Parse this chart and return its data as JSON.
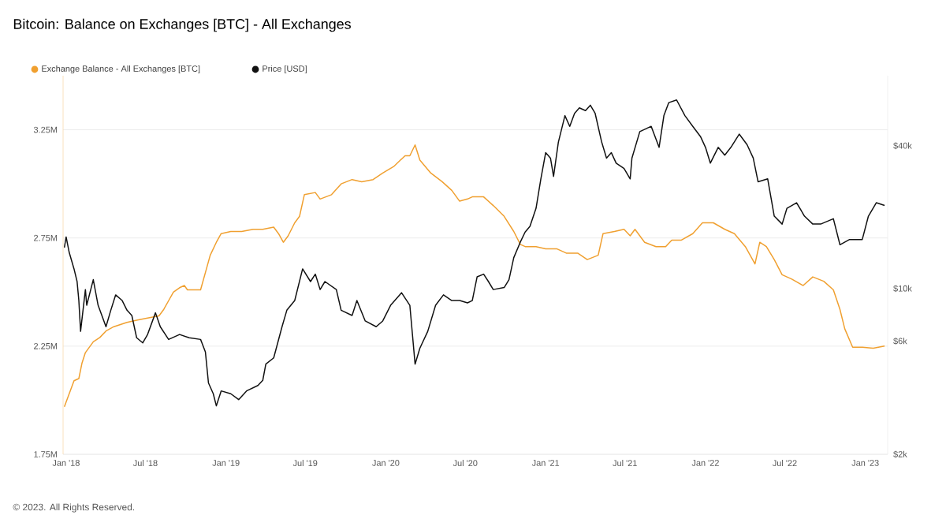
{
  "chart_data": {
    "type": "line",
    "title": "Bitcoin: Balance on Exchanges [BTC] - All Exchanges",
    "annotations": [
      "© 2023. All Rights Reserved."
    ],
    "series": [
      {
        "name": "Exchange Balance - All Exchanges [BTC]",
        "color": "#f0a030",
        "x": [
          "2017-12-28",
          "2018-01-08",
          "2018-01-19",
          "2018-01-30",
          "2018-02-06",
          "2018-02-14",
          "2018-03-04",
          "2018-03-19",
          "2018-04-02",
          "2018-04-20",
          "2018-05-20",
          "2018-06-11",
          "2018-07-06",
          "2018-08-01",
          "2018-08-12",
          "2018-08-23",
          "2018-09-03",
          "2018-09-17",
          "2018-09-28",
          "2018-10-05",
          "2018-11-04",
          "2018-11-15",
          "2018-11-26",
          "2018-12-10",
          "2018-12-21",
          "2019-01-12",
          "2019-02-06",
          "2019-03-04",
          "2019-03-26",
          "2019-04-20",
          "2019-05-01",
          "2019-05-12",
          "2019-05-23",
          "2019-06-07",
          "2019-06-18",
          "2019-06-29",
          "2019-07-24",
          "2019-08-04",
          "2019-08-30",
          "2019-09-21",
          "2019-10-16",
          "2019-11-07",
          "2019-12-03",
          "2019-12-25",
          "2020-01-19",
          "2020-02-14",
          "2020-02-25",
          "2020-03-08",
          "2020-03-19",
          "2020-04-13",
          "2020-05-09",
          "2020-05-31",
          "2020-06-18",
          "2020-07-06",
          "2020-07-17",
          "2020-08-12",
          "2020-09-03",
          "2020-09-28",
          "2020-10-20",
          "2020-11-04",
          "2020-11-15",
          "2020-12-10",
          "2021-01-01",
          "2021-01-26",
          "2021-02-17",
          "2021-03-15",
          "2021-04-06",
          "2021-05-01",
          "2021-05-12",
          "2021-06-07",
          "2021-06-29",
          "2021-07-13",
          "2021-07-24",
          "2021-08-15",
          "2021-09-10",
          "2021-10-02",
          "2021-10-16",
          "2021-11-07",
          "2021-12-03",
          "2021-12-25",
          "2022-01-19",
          "2022-02-14",
          "2022-03-08",
          "2022-04-02",
          "2022-04-24",
          "2022-05-05",
          "2022-05-20",
          "2022-06-07",
          "2022-06-25",
          "2022-07-17",
          "2022-08-12",
          "2022-09-03",
          "2022-09-28",
          "2022-10-20",
          "2022-11-04",
          "2022-11-15",
          "2022-12-03",
          "2022-12-25",
          "2023-01-19",
          "2023-02-14"
        ],
        "values": [
          1.97,
          2.03,
          2.09,
          2.1,
          2.17,
          2.22,
          2.27,
          2.29,
          2.32,
          2.34,
          2.36,
          2.37,
          2.38,
          2.39,
          2.42,
          2.46,
          2.5,
          2.52,
          2.53,
          2.51,
          2.51,
          2.59,
          2.67,
          2.73,
          2.77,
          2.78,
          2.78,
          2.79,
          2.79,
          2.8,
          2.77,
          2.73,
          2.76,
          2.82,
          2.85,
          2.95,
          2.96,
          2.93,
          2.95,
          3.0,
          3.02,
          3.01,
          3.02,
          3.05,
          3.08,
          3.13,
          3.13,
          3.18,
          3.11,
          3.05,
          3.01,
          2.97,
          2.92,
          2.93,
          2.94,
          2.94,
          2.9,
          2.85,
          2.78,
          2.72,
          2.71,
          2.71,
          2.7,
          2.7,
          2.68,
          2.68,
          2.65,
          2.67,
          2.77,
          2.78,
          2.79,
          2.76,
          2.79,
          2.73,
          2.71,
          2.71,
          2.74,
          2.74,
          2.77,
          2.82,
          2.82,
          2.79,
          2.77,
          2.71,
          2.63,
          2.73,
          2.71,
          2.65,
          2.58,
          2.56,
          2.53,
          2.57,
          2.55,
          2.51,
          2.42,
          2.33,
          2.245,
          2.245,
          2.24,
          2.25
        ]
      },
      {
        "name": "Price [USD]",
        "color": "#111111",
        "axis": "y2",
        "x": [
          "2017-12-28",
          "2018-01-01",
          "2018-01-08",
          "2018-01-19",
          "2018-01-26",
          "2018-01-30",
          "2018-02-03",
          "2018-02-14",
          "2018-02-17",
          "2018-03-04",
          "2018-03-15",
          "2018-04-02",
          "2018-04-13",
          "2018-04-24",
          "2018-05-09",
          "2018-05-20",
          "2018-05-31",
          "2018-06-11",
          "2018-06-25",
          "2018-07-06",
          "2018-07-24",
          "2018-08-04",
          "2018-08-23",
          "2018-09-17",
          "2018-10-09",
          "2018-11-04",
          "2018-11-15",
          "2018-11-22",
          "2018-12-03",
          "2018-12-10",
          "2018-12-21",
          "2019-01-12",
          "2019-01-30",
          "2019-02-17",
          "2019-03-15",
          "2019-03-26",
          "2019-04-02",
          "2019-04-20",
          "2019-05-09",
          "2019-05-20",
          "2019-06-07",
          "2019-06-25",
          "2019-07-13",
          "2019-07-24",
          "2019-08-04",
          "2019-08-15",
          "2019-09-10",
          "2019-09-21",
          "2019-10-16",
          "2019-10-27",
          "2019-11-15",
          "2019-12-10",
          "2019-12-25",
          "2020-01-12",
          "2020-02-06",
          "2020-02-25",
          "2020-03-08",
          "2020-03-19",
          "2020-04-06",
          "2020-04-24",
          "2020-05-12",
          "2020-05-31",
          "2020-06-18",
          "2020-07-06",
          "2020-07-17",
          "2020-07-28",
          "2020-08-12",
          "2020-08-23",
          "2020-09-03",
          "2020-09-28",
          "2020-10-09",
          "2020-10-20",
          "2020-11-04",
          "2020-11-15",
          "2020-11-26",
          "2020-12-10",
          "2020-12-21",
          "2021-01-01",
          "2021-01-12",
          "2021-01-19",
          "2021-01-30",
          "2021-02-14",
          "2021-02-25",
          "2021-03-08",
          "2021-03-19",
          "2021-04-02",
          "2021-04-13",
          "2021-04-24",
          "2021-05-09",
          "2021-05-20",
          "2021-05-31",
          "2021-06-11",
          "2021-06-29",
          "2021-07-13",
          "2021-07-17",
          "2021-08-04",
          "2021-08-30",
          "2021-09-17",
          "2021-09-28",
          "2021-10-09",
          "2021-10-27",
          "2021-11-15",
          "2021-12-03",
          "2021-12-21",
          "2022-01-01",
          "2022-01-12",
          "2022-01-30",
          "2022-02-14",
          "2022-02-28",
          "2022-03-19",
          "2022-04-06",
          "2022-04-20",
          "2022-05-01",
          "2022-05-23",
          "2022-06-07",
          "2022-06-25",
          "2022-07-06",
          "2022-07-28",
          "2022-08-15",
          "2022-09-03",
          "2022-09-21",
          "2022-10-20",
          "2022-11-04",
          "2022-11-26",
          "2022-12-25",
          "2023-01-08",
          "2023-01-26",
          "2023-02-14"
        ],
        "values": [
          14900,
          16500,
          14200,
          12100,
          10700,
          8900,
          6600,
          9900,
          8500,
          10900,
          8500,
          6900,
          8100,
          9400,
          8900,
          8100,
          7700,
          6200,
          5900,
          6400,
          7900,
          6900,
          6100,
          6400,
          6200,
          6100,
          5400,
          4000,
          3600,
          3200,
          3700,
          3600,
          3400,
          3700,
          3900,
          4100,
          4800,
          5100,
          6900,
          8100,
          8900,
          12100,
          10700,
          11500,
          9900,
          10700,
          9900,
          8100,
          7700,
          8900,
          7300,
          6900,
          7300,
          8500,
          9600,
          8500,
          4800,
          5600,
          6600,
          8500,
          9400,
          8900,
          8900,
          8700,
          8900,
          11200,
          11500,
          10700,
          9900,
          10100,
          10900,
          13500,
          15700,
          17300,
          18300,
          21800,
          29000,
          37400,
          35500,
          29700,
          41400,
          53600,
          48300,
          54800,
          57800,
          56300,
          59300,
          54800,
          41400,
          35500,
          37400,
          33800,
          32100,
          29000,
          35500,
          45900,
          48300,
          39400,
          53600,
          60800,
          62400,
          53600,
          48300,
          43600,
          39400,
          33800,
          39400,
          36500,
          39400,
          44800,
          40400,
          35500,
          28200,
          29000,
          20200,
          18700,
          21800,
          23000,
          20200,
          18700,
          18700,
          19700,
          15300,
          16100,
          16100,
          20200,
          23000,
          22400
        ]
      }
    ],
    "xlim": [
      "2017-12-25",
      "2023-02-21"
    ],
    "xticks": [
      {
        "value": "2018-01",
        "label": "Jan '18"
      },
      {
        "value": "2018-07",
        "label": "Jul '18"
      },
      {
        "value": "2019-01",
        "label": "Jan '19"
      },
      {
        "value": "2019-07",
        "label": "Jul '19"
      },
      {
        "value": "2020-01",
        "label": "Jan '20"
      },
      {
        "value": "2020-07",
        "label": "Jul '20"
      },
      {
        "value": "2021-01",
        "label": "Jan '21"
      },
      {
        "value": "2021-07",
        "label": "Jul '21"
      },
      {
        "value": "2022-01",
        "label": "Jan '22"
      },
      {
        "value": "2022-07",
        "label": "Jul '22"
      },
      {
        "value": "2023-01",
        "label": "Jan '23"
      }
    ],
    "ylim": [
      1.75,
      3.5
    ],
    "yticks": [
      {
        "value": 1.75,
        "label": "1.75M"
      },
      {
        "value": 2.25,
        "label": "2.25M"
      },
      {
        "value": 2.75,
        "label": "2.75M"
      },
      {
        "value": 3.25,
        "label": "3.25M"
      }
    ],
    "y2lim": [
      2000,
      79000
    ],
    "y2ticks": [
      {
        "value": 2000,
        "label": "$2k"
      },
      {
        "value": 6000,
        "label": "$6k"
      },
      {
        "value": 10000,
        "label": "$10k"
      },
      {
        "value": 40000,
        "label": "$40k"
      }
    ],
    "log": "y2",
    "grid": "y",
    "legend": "top left"
  }
}
